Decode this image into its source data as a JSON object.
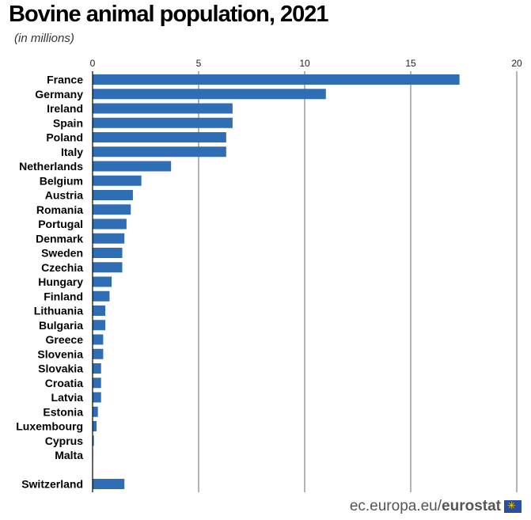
{
  "header": {
    "title": "Bovine animal population, 2021",
    "subtitle": "(in millions)"
  },
  "footer": {
    "site": "ec.europa.eu/",
    "brand": "eurostat",
    "flag_icon": "eu-flag-icon"
  },
  "colors": {
    "bar": "#2f6db5",
    "grid": "#6b6b6b",
    "axis": "#000000"
  },
  "chart_data": {
    "type": "bar",
    "orientation": "horizontal",
    "title": "Bovine animal population, 2021",
    "subtitle": "(in millions)",
    "xlim": [
      0,
      20
    ],
    "xticks": [
      0,
      5,
      10,
      15,
      20
    ],
    "grid": true,
    "categories": [
      "France",
      "Germany",
      "Ireland",
      "Spain",
      "Poland",
      "Italy",
      "Netherlands",
      "Belgium",
      "Austria",
      "Romania",
      "Portugal",
      "Denmark",
      "Sweden",
      "Czechia",
      "Hungary",
      "Finland",
      "Lithuania",
      "Bulgaria",
      "Greece",
      "Slovenia",
      "Slovakia",
      "Croatia",
      "Latvia",
      "Estonia",
      "Luxembourg",
      "Cyprus",
      "Malta",
      "Switzerland"
    ],
    "values": [
      17.3,
      11.0,
      6.6,
      6.6,
      6.3,
      6.3,
      3.7,
      2.3,
      1.9,
      1.8,
      1.6,
      1.5,
      1.4,
      1.4,
      0.9,
      0.8,
      0.6,
      0.6,
      0.5,
      0.5,
      0.4,
      0.4,
      0.4,
      0.25,
      0.19,
      0.06,
      0.02,
      1.5
    ],
    "gap_before": [
      "Switzerland"
    ]
  }
}
